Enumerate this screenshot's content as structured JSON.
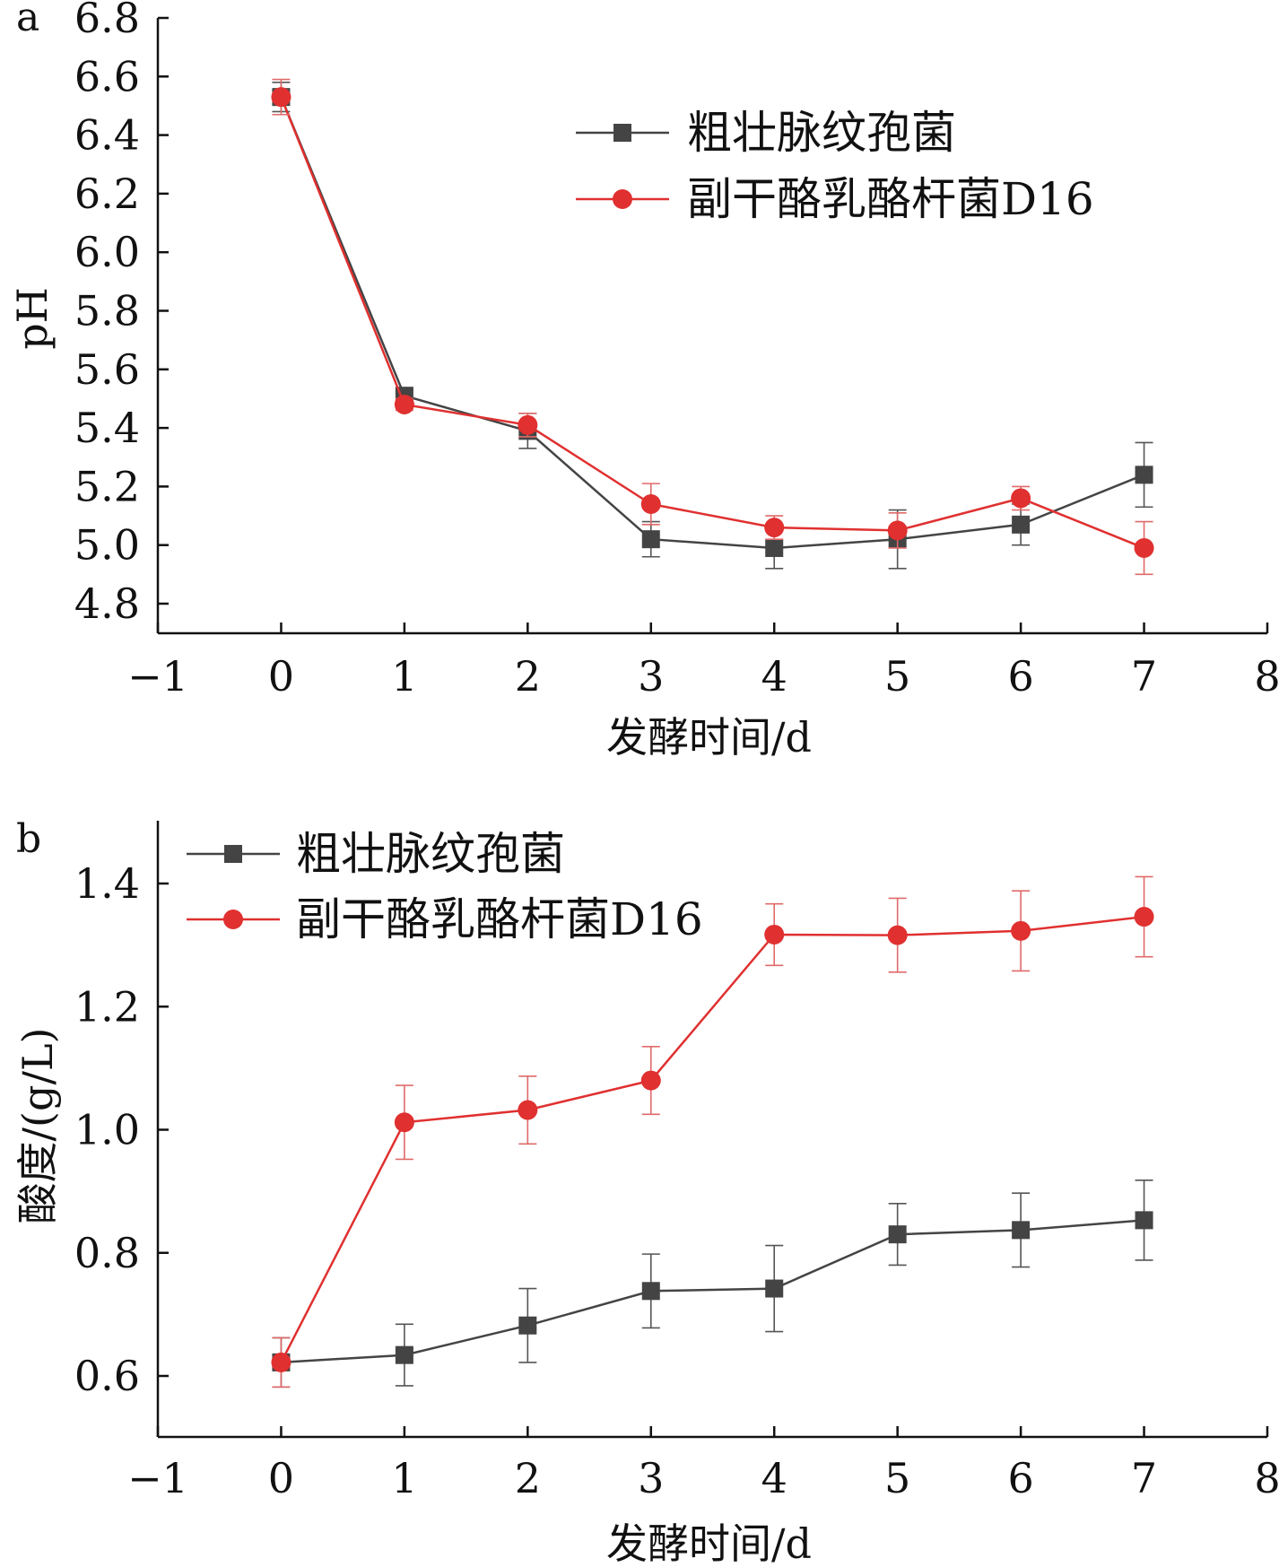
{
  "colors": {
    "series_black": "#444444",
    "series_red": "#e03030",
    "axis": "#111111"
  },
  "chart_data": [
    {
      "type": "line",
      "panel_label": "a",
      "title": "",
      "xlabel": "发酵时间/d",
      "ylabel": "pH",
      "xlim": [
        -1,
        8
      ],
      "ylim": [
        4.7,
        6.8
      ],
      "xticks": [
        -1,
        0,
        1,
        2,
        3,
        4,
        5,
        6,
        7,
        8
      ],
      "xtick_labels": [
        "−1",
        "0",
        "1",
        "2",
        "3",
        "4",
        "5",
        "6",
        "7",
        "8"
      ],
      "yticks": [
        4.8,
        5.0,
        5.2,
        5.4,
        5.6,
        5.8,
        6.0,
        6.2,
        6.4,
        6.6,
        6.8
      ],
      "ytick_labels": [
        "4.8",
        "5.0",
        "5.2",
        "5.4",
        "5.6",
        "5.8",
        "6.0",
        "6.2",
        "6.4",
        "6.6",
        "6.8"
      ],
      "legend_position": "top-right",
      "x": [
        0,
        1,
        2,
        3,
        4,
        5,
        6,
        7
      ],
      "series": [
        {
          "name": "粗壮脉纹孢菌",
          "color": "#444444",
          "marker": "square",
          "values": [
            6.53,
            5.51,
            5.39,
            5.02,
            4.99,
            5.02,
            5.07,
            5.24
          ],
          "errors": [
            0.05,
            0.02,
            0.06,
            0.06,
            0.07,
            0.1,
            0.07,
            0.11
          ]
        },
        {
          "name": "副干酪乳酪杆菌D16",
          "color": "#e03030",
          "marker": "circle",
          "values": [
            6.53,
            5.48,
            5.41,
            5.14,
            5.06,
            5.05,
            5.16,
            4.99
          ],
          "errors": [
            0.06,
            0.02,
            0.04,
            0.07,
            0.04,
            0.06,
            0.04,
            0.09
          ]
        }
      ]
    },
    {
      "type": "line",
      "panel_label": "b",
      "title": "",
      "xlabel": "发酵时间/d",
      "ylabel": "酸度/(g/L)",
      "xlim": [
        -1,
        8
      ],
      "ylim": [
        0.5,
        1.5
      ],
      "xticks": [
        -1,
        0,
        1,
        2,
        3,
        4,
        5,
        6,
        7,
        8
      ],
      "xtick_labels": [
        "−1",
        "0",
        "1",
        "2",
        "3",
        "4",
        "5",
        "6",
        "7",
        "8"
      ],
      "yticks": [
        0.6,
        0.8,
        1.0,
        1.2,
        1.4
      ],
      "ytick_labels": [
        "0.6",
        "0.8",
        "1.0",
        "1.2",
        "1.4"
      ],
      "legend_position": "top-left",
      "x": [
        0,
        1,
        2,
        3,
        4,
        5,
        6,
        7
      ],
      "series": [
        {
          "name": "粗壮脉纹孢菌",
          "color": "#444444",
          "marker": "square",
          "values": [
            0.622,
            0.634,
            0.682,
            0.738,
            0.742,
            0.83,
            0.837,
            0.853
          ],
          "errors": [
            0.04,
            0.05,
            0.06,
            0.06,
            0.07,
            0.05,
            0.06,
            0.065
          ]
        },
        {
          "name": "副干酪乳酪杆菌D16",
          "color": "#e03030",
          "marker": "circle",
          "values": [
            0.622,
            1.012,
            1.032,
            1.08,
            1.317,
            1.316,
            1.323,
            1.346
          ],
          "errors": [
            0.04,
            0.06,
            0.055,
            0.055,
            0.05,
            0.06,
            0.065,
            0.065
          ]
        }
      ]
    }
  ]
}
